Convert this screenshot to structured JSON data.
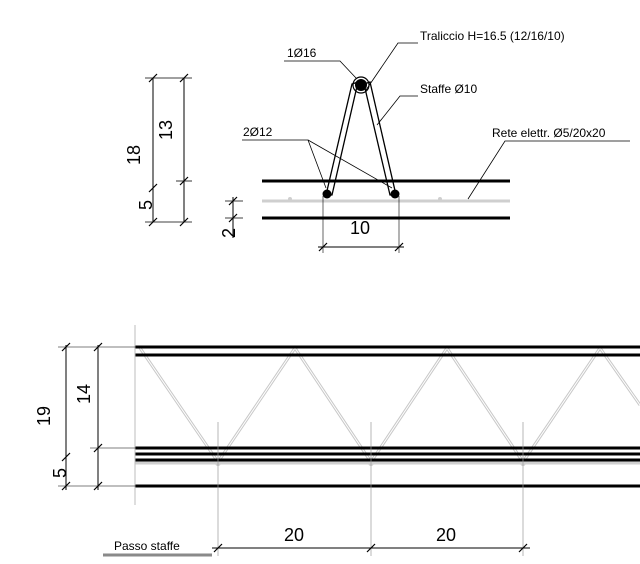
{
  "section": {
    "label_top_bar": "1Ø16",
    "label_truss": "Traliccio H=16.5 (12/16/10)",
    "label_stirrups": "Staffe Ø10",
    "label_bottom_bars": "2Ø12",
    "label_mesh": "Rete elettr. Ø5/20x20",
    "dim_total": "18",
    "dim_truss_height": "13",
    "dim_lower": "5",
    "dim_cover": "2",
    "dim_width": "10"
  },
  "elevation": {
    "dim_total": "19",
    "dim_truss_height": "14",
    "dim_lower": "5",
    "dim_pitch_1": "20",
    "dim_pitch_2": "20",
    "label_pitch": "Passo staffe"
  }
}
